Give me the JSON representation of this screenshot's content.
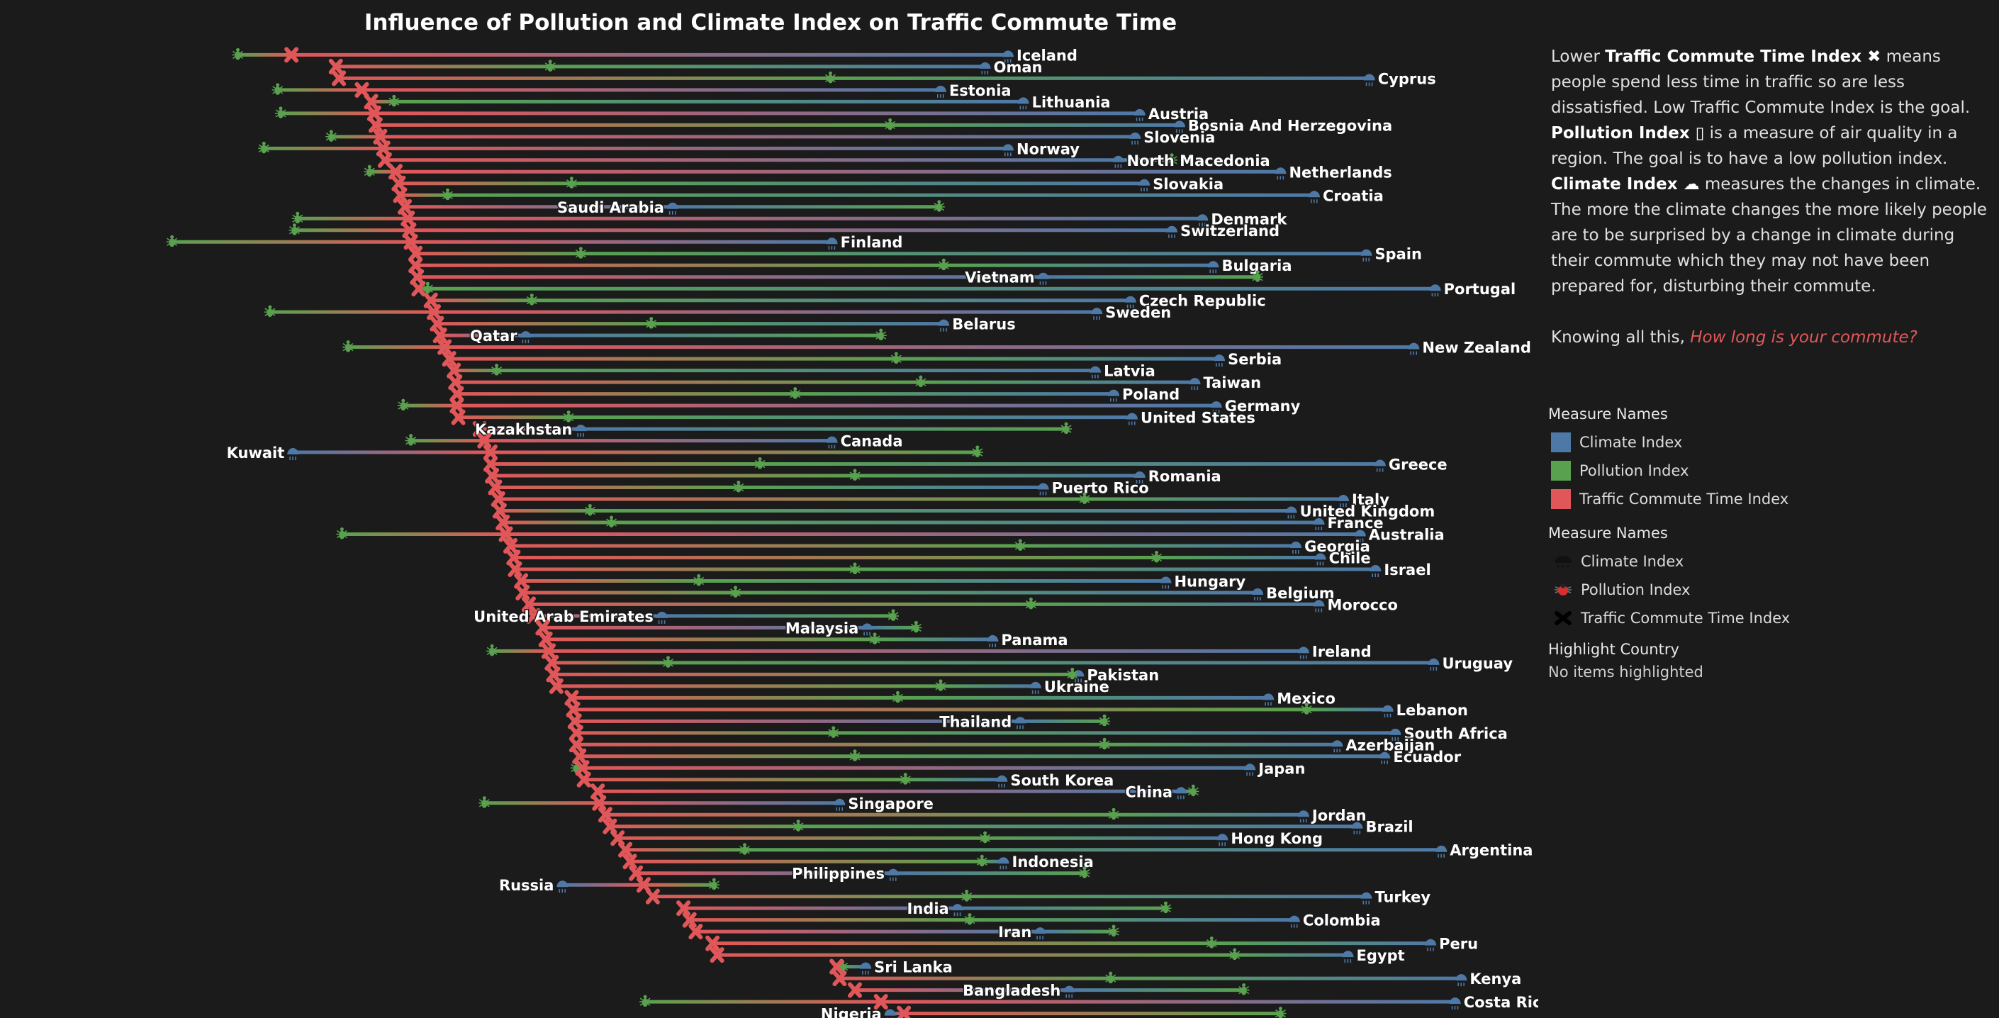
{
  "chart_data": {
    "type": "dot-line",
    "title": "Influence of Pollution and Climate Index on Traffic Commute Time",
    "grid": false,
    "legend_placement": "right",
    "colors": {
      "Climate Index": "#4e79a7",
      "Pollution Index": "#59a14f",
      "Traffic Commute Time Index": "#e15759"
    },
    "icons": {
      "Climate Index": "rain-cloud-icon",
      "Pollution Index": "bug-icon",
      "Traffic Commute Time Index": "x-mark-icon"
    },
    "categories": [
      "Iceland",
      "Oman",
      "Cyprus",
      "Estonia",
      "Lithuania",
      "Austria",
      "Bosnia And Herzegovina",
      "Slovenia",
      "Norway",
      "North Macedonia",
      "Netherlands",
      "Slovakia",
      "Croatia",
      "Saudi Arabia",
      "Denmark",
      "Switzerland",
      "Finland",
      "Spain",
      "Bulgaria",
      "Vietnam",
      "Portugal",
      "Czech Republic",
      "Sweden",
      "Belarus",
      "Qatar",
      "New Zealand",
      "Serbia",
      "Latvia",
      "Taiwan",
      "Poland",
      "Germany",
      "United States",
      "Kazakhstan",
      "Canada",
      "Kuwait",
      "Greece",
      "Romania",
      "Puerto Rico",
      "Italy",
      "United Kingdom",
      "France",
      "Australia",
      "Georgia",
      "Chile",
      "Israel",
      "Hungary",
      "Belgium",
      "Morocco",
      "United Arab Emirates",
      "Malaysia",
      "Panama",
      "Ireland",
      "Uruguay",
      "Pakistan",
      "Ukraine",
      "Mexico",
      "Lebanon",
      "Thailand",
      "South Africa",
      "Azerbaijan",
      "Ecuador",
      "Japan",
      "South Korea",
      "China",
      "Singapore",
      "Jordan",
      "Brazil",
      "Hong Kong",
      "Argentina",
      "Indonesia",
      "Philippines",
      "Russia",
      "Turkey",
      "India",
      "Colombia",
      "Iran",
      "Peru",
      "Egypt",
      "Sri Lanka",
      "Kenya",
      "Bangladesh",
      "Costa Rica",
      "Nigeria"
    ],
    "series": [
      {
        "name": "Traffic Commute Time Index",
        "values": [
          18.2,
          21.1,
          21.3,
          22.8,
          23.4,
          23.6,
          23.7,
          24.0,
          24.2,
          24.3,
          25.0,
          25.2,
          25.3,
          25.6,
          25.8,
          25.9,
          26.0,
          26.3,
          26.3,
          26.4,
          26.5,
          27.3,
          27.5,
          27.7,
          27.9,
          28.2,
          28.5,
          28.8,
          28.9,
          29.0,
          29.0,
          29.1,
          30.5,
          30.8,
          31.2,
          31.2,
          31.3,
          31.5,
          31.7,
          31.8,
          32.0,
          32.2,
          32.5,
          32.7,
          32.8,
          33.2,
          33.3,
          33.7,
          34.0,
          34.6,
          34.8,
          35.0,
          35.2,
          35.3,
          35.5,
          36.5,
          36.6,
          36.7,
          36.8,
          36.8,
          37.0,
          37.2,
          37.3,
          38.2,
          38.3,
          38.7,
          39.0,
          39.5,
          40.0,
          40.3,
          40.7,
          41.2,
          41.8,
          43.8,
          44.2,
          44.6,
          45.7,
          46.0,
          53.8,
          54.0,
          55.0,
          56.7,
          58.2
        ]
      },
      {
        "name": "Pollution Index",
        "values": [
          14.7,
          35.1,
          53.4,
          17.3,
          24.9,
          17.5,
          57.3,
          20.8,
          16.4,
          75.7,
          23.3,
          36.5,
          28.4,
          60.5,
          18.6,
          18.4,
          10.4,
          37.1,
          60.8,
          81.3,
          27.1,
          33.9,
          16.8,
          41.7,
          56.7,
          21.9,
          57.7,
          31.6,
          59.3,
          51.1,
          25.5,
          36.3,
          68.8,
          26.0,
          63.0,
          48.8,
          55.0,
          47.4,
          70.0,
          37.7,
          39.1,
          21.5,
          65.8,
          74.7,
          55.0,
          44.8,
          47.2,
          66.5,
          57.5,
          59.0,
          56.3,
          31.3,
          42.8,
          69.2,
          60.6,
          57.8,
          84.5,
          71.3,
          53.6,
          71.3,
          55.0,
          36.8,
          58.3,
          77.1,
          30.8,
          71.9,
          51.3,
          63.5,
          47.8,
          63.3,
          70.0,
          45.8,
          62.3,
          75.3,
          62.5,
          71.9,
          78.3,
          79.8,
          54.2,
          71.7,
          80.4,
          41.3,
          82.8
        ]
      },
      {
        "name": "Climate Index",
        "values": [
          65.0,
          63.5,
          88.6,
          60.6,
          66.0,
          73.6,
          76.2,
          73.3,
          65.0,
          72.2,
          82.8,
          73.9,
          85.0,
          43.1,
          77.7,
          75.7,
          53.5,
          88.4,
          78.4,
          67.3,
          92.9,
          73.0,
          70.8,
          60.8,
          33.5,
          91.5,
          78.8,
          70.7,
          77.2,
          71.9,
          78.6,
          73.1,
          37.1,
          53.5,
          18.3,
          89.3,
          73.6,
          67.3,
          86.9,
          83.5,
          85.3,
          88.0,
          83.8,
          85.4,
          89.0,
          75.3,
          81.3,
          85.3,
          42.4,
          55.8,
          64.0,
          84.3,
          92.8,
          69.6,
          66.8,
          82.0,
          89.8,
          65.8,
          90.3,
          86.5,
          89.6,
          80.8,
          64.6,
          76.3,
          54.0,
          84.3,
          87.8,
          79.0,
          93.3,
          64.7,
          57.5,
          35.9,
          88.4,
          61.7,
          83.7,
          67.1,
          92.6,
          87.2,
          55.7,
          94.6,
          69.0,
          94.2,
          57.3
        ]
      }
    ]
  },
  "panel": {
    "p1_pre": "Lower ",
    "p1_bold": "Traffic Commute Time Index ✖",
    "p1_post": " means people spend less time in traffic so are less dissatisfied. Low Traffic Commute Index is the goal.",
    "p2_bold": "Pollution Index ▯",
    "p2_post": "  is a measure of air quality in a region. The goal is to have a low pollution index.",
    "p3_bold": "Climate Index ☁",
    "p3_post": " measures the changes in climate. The more the climate changes the more likely people are to be surprised by a change in climate during their commute which they may not have been prepared for, disturbing their commute.",
    "p4_pre": "Knowing all this, ",
    "p4_question": "How long is your commute?"
  },
  "legend_color": {
    "title": "Measure Names",
    "items": [
      {
        "label": "Climate Index",
        "color": "#4e79a7"
      },
      {
        "label": "Pollution Index",
        "color": "#59a14f"
      },
      {
        "label": "Traffic Commute Time Index",
        "color": "#e15759"
      }
    ]
  },
  "legend_shape": {
    "title": "Measure Names",
    "items": [
      {
        "label": "Climate Index",
        "icon": "rain-cloud-icon"
      },
      {
        "label": "Pollution Index",
        "icon": "bug-icon"
      },
      {
        "label": "Traffic Commute Time Index",
        "icon": "x-mark-icon"
      }
    ]
  },
  "highlight": {
    "title": "Highlight Country",
    "value": "No items highlighted"
  }
}
